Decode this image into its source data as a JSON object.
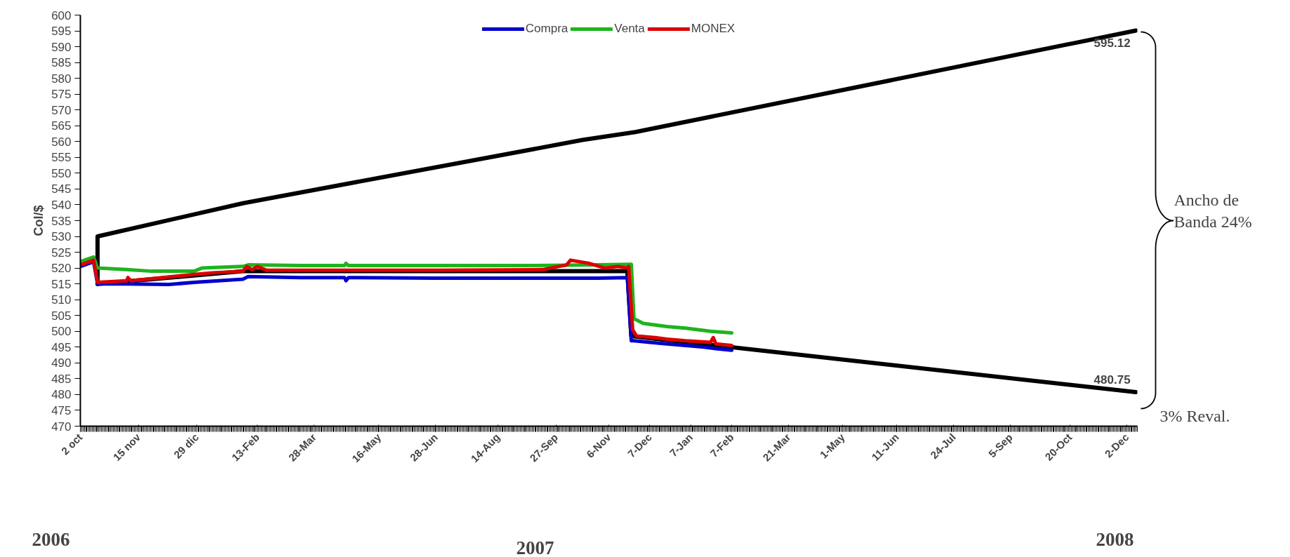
{
  "chart_data": {
    "type": "line",
    "ylabel": "Col/$",
    "xlim": [
      "2006-10-02",
      "2008-12-10"
    ],
    "ylim": [
      470,
      600
    ],
    "xticks": [
      {
        "value": "2006-10-02",
        "label": "2 oct"
      },
      {
        "value": "2006-11-15",
        "label": "15 nov"
      },
      {
        "value": "2006-12-29",
        "label": "29 dic"
      },
      {
        "value": "2007-02-13",
        "label": "13-Feb"
      },
      {
        "value": "2007-03-28",
        "label": "28-Mar"
      },
      {
        "value": "2007-05-16",
        "label": "16-May"
      },
      {
        "value": "2007-06-28",
        "label": "28-Jun"
      },
      {
        "value": "2007-08-14",
        "label": "14-Aug"
      },
      {
        "value": "2007-09-27",
        "label": "27-Sep"
      },
      {
        "value": "2007-11-06",
        "label": "6-Nov"
      },
      {
        "value": "2007-12-07",
        "label": "7-Dec"
      },
      {
        "value": "2008-01-07",
        "label": "7-Jan"
      },
      {
        "value": "2008-02-07",
        "label": "7-Feb"
      },
      {
        "value": "2008-03-21",
        "label": "21-Mar"
      },
      {
        "value": "2008-05-01",
        "label": "1-May"
      },
      {
        "value": "2008-06-11",
        "label": "11-Jun"
      },
      {
        "value": "2008-07-24",
        "label": "24-Jul"
      },
      {
        "value": "2008-09-05",
        "label": "5-Sep"
      },
      {
        "value": "2008-10-20",
        "label": "20-Oct"
      },
      {
        "value": "2008-12-02",
        "label": "2-Dec"
      }
    ],
    "yticks": [
      470,
      475,
      480,
      485,
      490,
      495,
      500,
      505,
      510,
      515,
      520,
      525,
      530,
      535,
      540,
      545,
      550,
      555,
      560,
      565,
      570,
      575,
      580,
      585,
      590,
      595,
      600
    ],
    "grid": false,
    "legend": "top",
    "marker": "none",
    "line_style": "solid",
    "series": [
      {
        "color": "#000000",
        "x": [
          "2006-10-15",
          "2006-10-15",
          "2007-02-02",
          "2007-10-17",
          "2007-11-26",
          "2008-12-09"
        ],
        "values": [
          515,
          530,
          540.5,
          560.5,
          563,
          595.12
        ]
      },
      {
        "color": "#000000",
        "x": [
          "2006-10-15",
          "2007-02-02",
          "2007-11-20",
          "2007-11-23",
          "2008-12-09"
        ],
        "values": [
          515,
          519,
          519,
          498.5,
          480.75
        ]
      },
      {
        "name": "Compra",
        "color": "#0000cc",
        "x": [
          "2006-10-02",
          "2006-10-12",
          "2006-10-15",
          "2006-11-06",
          "2006-12-08",
          "2006-12-27",
          "2007-02-02",
          "2007-02-06",
          "2007-03-18",
          "2007-04-20",
          "2007-04-21",
          "2007-04-23",
          "2007-06-28",
          "2007-09-04",
          "2007-10-29",
          "2007-11-20",
          "2007-11-23",
          "2007-11-25",
          "2007-12-07",
          "2007-12-20",
          "2008-01-03",
          "2008-01-17",
          "2008-01-26",
          "2008-02-07"
        ],
        "values": [
          520.5,
          522,
          515,
          515,
          514.8,
          515.5,
          516.5,
          517.3,
          517,
          517,
          516,
          517,
          516.8,
          516.8,
          516.8,
          517,
          497,
          497,
          496.5,
          496,
          495.5,
          495,
          494.5,
          494
        ]
      },
      {
        "name": "Venta",
        "color": "#1eb41e",
        "x": [
          "2006-10-02",
          "2006-10-12",
          "2006-10-15",
          "2006-11-06",
          "2006-11-25",
          "2006-12-27",
          "2007-01-02",
          "2007-02-02",
          "2007-02-06",
          "2007-03-18",
          "2007-04-20",
          "2007-04-21",
          "2007-04-23",
          "2007-06-28",
          "2007-09-04",
          "2007-10-29",
          "2007-11-23",
          "2007-11-25",
          "2007-12-02",
          "2007-12-20",
          "2008-01-03",
          "2008-01-22",
          "2008-02-07"
        ],
        "values": [
          522,
          523.5,
          520,
          519.5,
          519,
          519,
          520,
          520.5,
          521,
          520.8,
          520.8,
          521.5,
          520.8,
          520.8,
          520.8,
          521,
          521.2,
          504,
          502.5,
          501.5,
          501,
          500,
          499.5
        ]
      },
      {
        "name": "MONEX",
        "color": "#dd0000",
        "x": [
          "2006-10-02",
          "2006-10-12",
          "2006-10-15",
          "2006-11-06",
          "2006-11-07",
          "2006-11-09",
          "2006-12-27",
          "2007-01-10",
          "2007-02-02",
          "2007-02-05",
          "2007-02-09",
          "2007-02-13",
          "2007-02-20",
          "2007-03-18",
          "2007-06-28",
          "2007-09-17",
          "2007-10-05",
          "2007-10-08",
          "2007-10-22",
          "2007-11-03",
          "2007-11-13",
          "2007-11-20",
          "2007-11-21",
          "2007-11-24",
          "2007-11-27",
          "2007-12-11",
          "2007-12-20",
          "2008-01-03",
          "2008-01-22",
          "2008-01-24",
          "2008-01-26",
          "2008-02-07"
        ],
        "values": [
          521,
          522.5,
          515.5,
          516,
          517,
          516,
          518,
          518.5,
          519,
          520.5,
          519.5,
          520.5,
          519.3,
          519.3,
          519.3,
          519.5,
          521,
          522.5,
          521.5,
          520,
          520.5,
          520,
          520.5,
          500.5,
          498.5,
          498,
          497.5,
          497,
          496.5,
          498,
          496,
          495.5
        ]
      }
    ],
    "annotations": [
      {
        "text": "595.12",
        "x": "2008-12-09",
        "y": 595.12
      },
      {
        "text": "480.75",
        "x": "2008-12-09",
        "y": 480.75
      },
      "Ancho de\nBanda 24%",
      "3% Reval.",
      "2006",
      "2007",
      "2008"
    ]
  }
}
